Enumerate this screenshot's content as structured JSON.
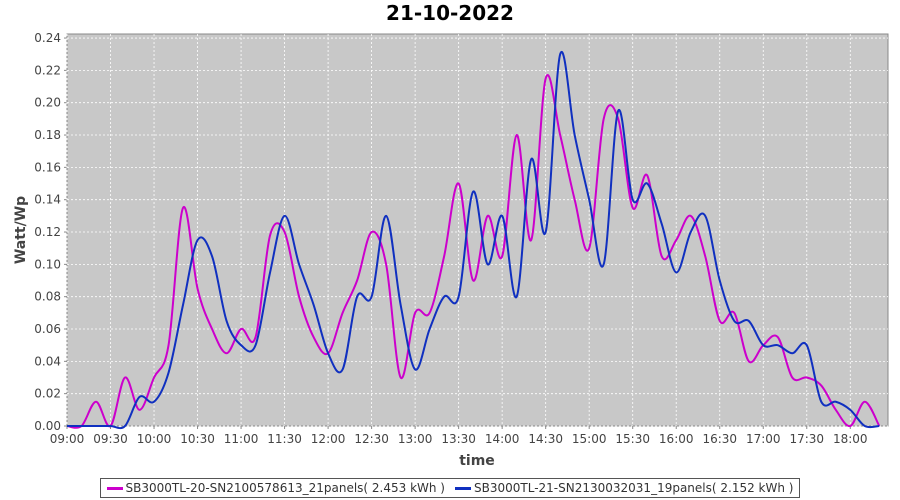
{
  "chart_data": {
    "type": "line",
    "title": "21-10-2022",
    "x_label": "time",
    "y_label": "Watt/Wp",
    "x": [
      "09:00",
      "09:10",
      "09:20",
      "09:30",
      "09:40",
      "09:50",
      "10:00",
      "10:10",
      "10:20",
      "10:30",
      "10:40",
      "10:50",
      "11:00",
      "11:10",
      "11:20",
      "11:30",
      "11:40",
      "11:50",
      "12:00",
      "12:10",
      "12:20",
      "12:30",
      "12:40",
      "12:50",
      "13:00",
      "13:10",
      "13:20",
      "13:30",
      "13:40",
      "13:50",
      "14:00",
      "14:10",
      "14:20",
      "14:30",
      "14:40",
      "14:50",
      "15:00",
      "15:10",
      "15:20",
      "15:30",
      "15:40",
      "15:50",
      "16:00",
      "16:10",
      "16:20",
      "16:30",
      "16:40",
      "16:50",
      "17:00",
      "17:10",
      "17:20",
      "17:30",
      "17:40",
      "17:50",
      "18:00",
      "18:10",
      "18:20"
    ],
    "series": [
      {
        "name": "SB3000TL-20-SN2100578613_21panels( 2.453 kWh )",
        "color": "#cc00cc",
        "values": [
          0,
          0,
          0.015,
          0,
          0.03,
          0.01,
          0.03,
          0.05,
          0.135,
          0.085,
          0.06,
          0.045,
          0.06,
          0.055,
          0.118,
          0.12,
          0.08,
          0.055,
          0.045,
          0.07,
          0.09,
          0.12,
          0.1,
          0.03,
          0.07,
          0.07,
          0.105,
          0.15,
          0.09,
          0.13,
          0.105,
          0.18,
          0.115,
          0.215,
          0.18,
          0.14,
          0.11,
          0.19,
          0.19,
          0.135,
          0.155,
          0.105,
          0.115,
          0.13,
          0.105,
          0.065,
          0.07,
          0.04,
          0.05,
          0.055,
          0.03,
          0.03,
          0.025,
          0.01,
          0,
          0.015,
          0
        ]
      },
      {
        "name": "SB3000TL-21-SN2130032031_19panels( 2.152 kWh )",
        "color": "#1030c0",
        "values": [
          0,
          0,
          0,
          0,
          0,
          0.018,
          0.015,
          0.033,
          0.075,
          0.115,
          0.105,
          0.065,
          0.05,
          0.05,
          0.095,
          0.13,
          0.1,
          0.075,
          0.045,
          0.035,
          0.08,
          0.08,
          0.13,
          0.075,
          0.035,
          0.06,
          0.08,
          0.08,
          0.145,
          0.1,
          0.13,
          0.08,
          0.165,
          0.12,
          0.23,
          0.18,
          0.14,
          0.1,
          0.195,
          0.14,
          0.15,
          0.125,
          0.095,
          0.12,
          0.13,
          0.09,
          0.065,
          0.065,
          0.05,
          0.05,
          0.045,
          0.05,
          0.015,
          0.015,
          0.01,
          0,
          0
        ]
      }
    ],
    "xlim": [
      "09:00",
      "18:26"
    ],
    "xticks": [
      "09:00",
      "09:30",
      "10:00",
      "10:30",
      "11:00",
      "11:30",
      "12:00",
      "12:30",
      "13:00",
      "13:30",
      "14:00",
      "14:30",
      "15:00",
      "15:30",
      "16:00",
      "16:30",
      "17:00",
      "17:30",
      "18:00"
    ],
    "ylim": [
      0,
      0.2425
    ],
    "yticks": [
      {
        "value": 0,
        "label": "0.00"
      },
      {
        "value": 0.02,
        "label": "0.02"
      },
      {
        "value": 0.04,
        "label": "0.04"
      },
      {
        "value": 0.06,
        "label": "0.06"
      },
      {
        "value": 0.08,
        "label": "0.08"
      },
      {
        "value": 0.1,
        "label": "0.10"
      },
      {
        "value": 0.12,
        "label": "0.12"
      },
      {
        "value": 0.14,
        "label": "0.14"
      },
      {
        "value": 0.16,
        "label": "0.16"
      },
      {
        "value": 0.18,
        "label": "0.18"
      },
      {
        "value": 0.2,
        "label": "0.20"
      },
      {
        "value": 0.22,
        "label": "0.22"
      },
      {
        "value": 0.24,
        "label": "0.24"
      }
    ],
    "grid": true,
    "background": "#c8c8c8"
  }
}
